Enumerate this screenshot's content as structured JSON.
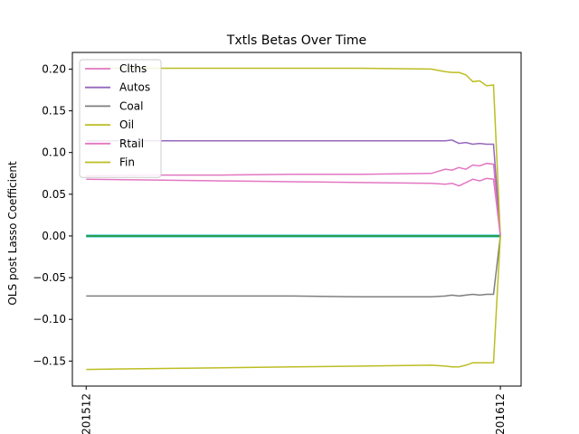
{
  "chart_data": {
    "type": "line",
    "title": "Txtls Betas Over Time",
    "xlabel": "",
    "ylabel": "OLS post Lasso Coefficient",
    "x_tick_labels": [
      "201512",
      "201612"
    ],
    "x_tick_positions": [
      0,
      60
    ],
    "x": [
      0,
      10,
      20,
      30,
      40,
      50,
      52,
      53,
      54,
      55,
      56,
      57,
      58,
      59,
      60
    ],
    "ylim": [
      -0.18,
      0.22
    ],
    "yticks": [
      -0.15,
      -0.1,
      -0.05,
      0.0,
      0.05,
      0.1,
      0.15,
      0.2
    ],
    "ytick_labels": [
      "−0.15",
      "−0.10",
      "−0.05",
      "0.00",
      "0.05",
      "0.10",
      "0.15",
      "0.20"
    ],
    "grid": false,
    "legend_position": "top-left",
    "series": [
      {
        "name": "Clths",
        "color": "#e377c2",
        "values": [
          0.072,
          0.073,
          0.073,
          0.074,
          0.074,
          0.075,
          0.08,
          0.079,
          0.082,
          0.08,
          0.085,
          0.084,
          0.087,
          0.086,
          0.0
        ]
      },
      {
        "name": "Autos",
        "color": "#9467bd",
        "values": [
          0.114,
          0.114,
          0.114,
          0.114,
          0.114,
          0.114,
          0.114,
          0.115,
          0.111,
          0.112,
          0.11,
          0.111,
          0.11,
          0.11,
          0.0
        ]
      },
      {
        "name": "Coal",
        "color": "#7f7f7f",
        "values": [
          -0.072,
          -0.072,
          -0.072,
          -0.072,
          -0.073,
          -0.073,
          -0.072,
          -0.071,
          -0.072,
          -0.071,
          -0.07,
          -0.071,
          -0.07,
          -0.07,
          0.0
        ]
      },
      {
        "name": "Oil",
        "color": "#bcbd22",
        "values": [
          0.201,
          0.201,
          0.201,
          0.201,
          0.201,
          0.2,
          0.197,
          0.196,
          0.196,
          0.193,
          0.185,
          0.186,
          0.18,
          0.181,
          0.0
        ]
      },
      {
        "name": "Rtail",
        "color": "#e377c2",
        "values": [
          0.068,
          0.067,
          0.066,
          0.065,
          0.064,
          0.063,
          0.062,
          0.063,
          0.06,
          0.064,
          0.068,
          0.066,
          0.069,
          0.068,
          0.0
        ]
      },
      {
        "name": "Fin",
        "color": "#bcbd22",
        "values": [
          -0.16,
          -0.159,
          -0.158,
          -0.157,
          -0.156,
          -0.155,
          -0.156,
          -0.157,
          -0.157,
          -0.155,
          -0.152,
          -0.152,
          -0.152,
          -0.152,
          0.0
        ]
      }
    ],
    "extra_series_colors": [
      "#17becf",
      "#1f77b4",
      "#2ca02c"
    ]
  }
}
